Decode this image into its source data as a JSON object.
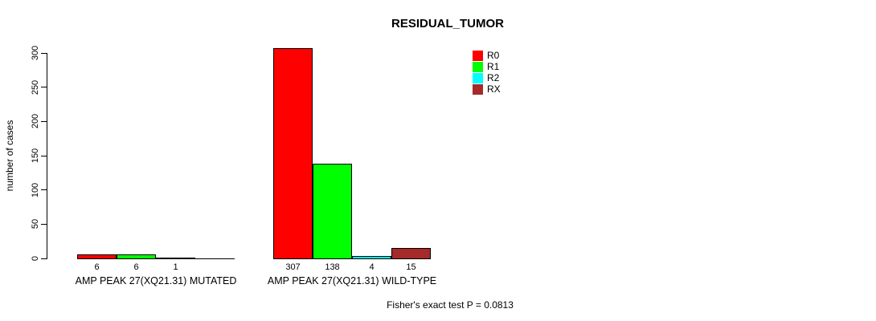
{
  "title": "RESIDUAL_TUMOR",
  "footer": {
    "text": "Fisher's exact test P = 0.0813"
  },
  "chart_data": {
    "type": "bar",
    "title": "RESIDUAL_TUMOR",
    "xlabel": "",
    "ylabel": "number of cases",
    "ylim": [
      0,
      300
    ],
    "yticks": [
      0,
      50,
      100,
      150,
      200,
      250,
      300
    ],
    "grid": false,
    "legend_position": "top-right",
    "categories": [
      "AMP PEAK 27(XQ21.31) MUTATED",
      "AMP PEAK 27(XQ21.31) WILD-TYPE"
    ],
    "series": [
      {
        "name": "R0",
        "color": "#FF0000",
        "values": [
          6,
          307
        ]
      },
      {
        "name": "R1",
        "color": "#00FF00",
        "values": [
          6,
          138
        ]
      },
      {
        "name": "R2",
        "color": "#00FFFF",
        "values": [
          1,
          4
        ]
      },
      {
        "name": "RX",
        "color": "#A52A2A",
        "values": [
          0,
          15
        ]
      }
    ],
    "bar_value_labels": [
      [
        "6",
        "6",
        "1",
        ""
      ],
      [
        "307",
        "138",
        "4",
        "15"
      ]
    ],
    "annotation": "Fisher's exact test P = 0.0813"
  }
}
